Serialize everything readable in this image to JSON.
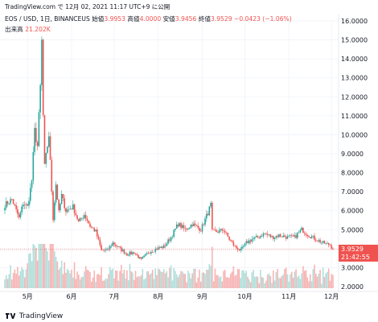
{
  "header": {
    "text": "TradingView.com で 12月 02, 2021 11:17 UTC+9 に公開"
  },
  "legend": {
    "symbol": "EOS / USD, 1日, BINANCEUS",
    "open_label": "始値",
    "open": "3.9953",
    "high_label": "高値",
    "high": "4.0000",
    "low_label": "安値",
    "low": "3.9456",
    "close_label": "終値",
    "close": "3.9529",
    "change": "−0.0423 (−1.06%)"
  },
  "volume": {
    "label": "出来高",
    "value": "21.202K"
  },
  "price_label": {
    "value": "3.9529",
    "time": "21:42:55"
  },
  "footer": {
    "brand": "TradingView"
  },
  "colors": {
    "up": "#26a69a",
    "down": "#ef5350",
    "up_vol": "#b2dfdb",
    "down_vol": "#f7b5b5"
  },
  "chart_data": {
    "type": "candlestick",
    "symbol": "EOS / USD",
    "interval": "1日",
    "exchange": "BINANCEUS",
    "y_axis": {
      "currency": "USD",
      "ticks": [
        "16.0000",
        "15.0000",
        "14.0000",
        "13.0000",
        "12.0000",
        "11.0000",
        "10.0000",
        "9.0000",
        "8.0000",
        "7.0000",
        "6.0000",
        "5.0000",
        "4.0000",
        "3.0000",
        "2.0000"
      ],
      "range": [
        2.0,
        16.0
      ]
    },
    "x_axis": {
      "ticks": [
        "5月",
        "6月",
        "7月",
        "8月",
        "9月",
        "10月",
        "11月",
        "12月"
      ]
    },
    "last_price": 3.9529,
    "price_path_approx": [
      [
        "04-15",
        6.3
      ],
      [
        "04-20",
        6.6
      ],
      [
        "04-25",
        5.6
      ],
      [
        "04-28",
        6.4
      ],
      [
        "05-01",
        6.2
      ],
      [
        "05-04",
        7.6
      ],
      [
        "05-06",
        10.2
      ],
      [
        "05-08",
        9.4
      ],
      [
        "05-10",
        12.5
      ],
      [
        "05-11",
        14.9
      ],
      [
        "05-12",
        11.0
      ],
      [
        "05-13",
        8.3
      ],
      [
        "05-16",
        10.0
      ],
      [
        "05-19",
        5.6
      ],
      [
        "05-21",
        7.4
      ],
      [
        "05-23",
        5.9
      ],
      [
        "05-25",
        6.8
      ],
      [
        "05-28",
        6.0
      ],
      [
        "06-02",
        6.2
      ],
      [
        "06-06",
        5.4
      ],
      [
        "06-10",
        5.8
      ],
      [
        "06-14",
        5.2
      ],
      [
        "06-18",
        4.9
      ],
      [
        "06-22",
        3.9
      ],
      [
        "06-26",
        3.9
      ],
      [
        "06-30",
        4.3
      ],
      [
        "07-05",
        4.0
      ],
      [
        "07-10",
        3.7
      ],
      [
        "07-15",
        3.8
      ],
      [
        "07-20",
        3.4
      ],
      [
        "07-25",
        3.8
      ],
      [
        "07-31",
        4.0
      ],
      [
        "08-05",
        4.1
      ],
      [
        "08-10",
        4.6
      ],
      [
        "08-15",
        5.3
      ],
      [
        "08-20",
        5.0
      ],
      [
        "08-25",
        5.3
      ],
      [
        "08-31",
        5.0
      ],
      [
        "09-05",
        5.9
      ],
      [
        "09-07",
        6.3
      ],
      [
        "09-08",
        4.9
      ],
      [
        "09-12",
        4.9
      ],
      [
        "09-16",
        5.0
      ],
      [
        "09-20",
        4.5
      ],
      [
        "09-24",
        4.1
      ],
      [
        "09-28",
        3.9
      ],
      [
        "10-02",
        4.3
      ],
      [
        "10-06",
        4.5
      ],
      [
        "10-10",
        4.6
      ],
      [
        "10-15",
        4.8
      ],
      [
        "10-20",
        4.6
      ],
      [
        "10-25",
        4.7
      ],
      [
        "10-31",
        4.6
      ],
      [
        "11-05",
        4.6
      ],
      [
        "11-10",
        5.0
      ],
      [
        "11-15",
        4.7
      ],
      [
        "11-20",
        4.5
      ],
      [
        "11-25",
        4.3
      ],
      [
        "11-30",
        4.2
      ],
      [
        "12-02",
        3.95
      ]
    ]
  }
}
